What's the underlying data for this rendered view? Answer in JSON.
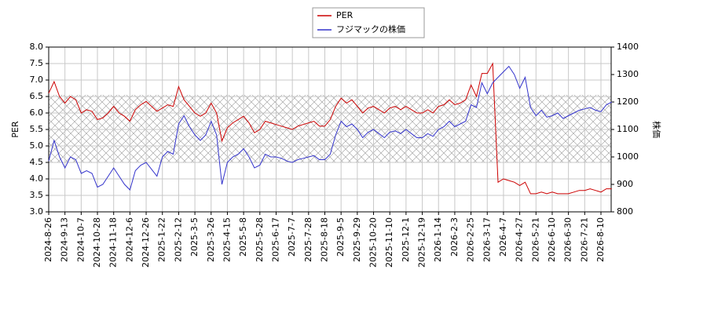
{
  "chart_data": {
    "type": "line",
    "ylabel": "PER",
    "y2label": "株価",
    "ylim": [
      3.0,
      8.0
    ],
    "yticks": [
      {
        "value": 3.0,
        "label": "3.0"
      },
      {
        "value": 3.5,
        "label": "3.5"
      },
      {
        "value": 4.0,
        "label": "4.0"
      },
      {
        "value": 4.5,
        "label": "4.5"
      },
      {
        "value": 5.0,
        "label": "5.0"
      },
      {
        "value": 5.5,
        "label": "5.5"
      },
      {
        "value": 6.0,
        "label": "6.0"
      },
      {
        "value": 6.5,
        "label": "6.5"
      },
      {
        "value": 7.0,
        "label": "7.0"
      },
      {
        "value": 7.5,
        "label": "7.5"
      },
      {
        "value": 8.0,
        "label": "8.0"
      }
    ],
    "y2lim": [
      800,
      1400
    ],
    "y2ticks": [
      800,
      900,
      1000,
      1100,
      1200,
      1300,
      1400
    ],
    "grid": true,
    "band": [
      4.5,
      6.55
    ],
    "legend": "top",
    "categories": [
      "2024-8-26",
      null,
      null,
      "2024-9-13",
      null,
      null,
      "2024-10-7",
      null,
      null,
      "2024-10-28",
      null,
      null,
      "2024-11-18",
      null,
      null,
      "2024-12-6",
      null,
      null,
      "2024-12-26",
      null,
      null,
      "2025-1-22",
      null,
      null,
      "2025-2-12",
      null,
      null,
      "2025-3-5",
      null,
      null,
      "2025-3-26",
      null,
      null,
      "2025-4-15",
      null,
      null,
      "2025-5-8",
      null,
      null,
      "2025-5-28",
      null,
      null,
      "2025-6-17",
      null,
      null,
      "2025-7-7",
      null,
      null,
      "2025-7-28",
      null,
      null,
      "2025-8-18",
      null,
      null,
      "2025-9-5",
      null,
      null,
      "2025-9-29",
      null,
      null,
      "2025-10-20",
      null,
      null,
      "2025-11-10",
      null,
      null,
      "2025-12-1",
      null,
      null,
      "2025-12-19",
      null,
      null,
      "2026-1-14",
      null,
      null,
      "2026-2-3",
      null,
      null,
      "2026-2-25",
      null,
      null,
      "2026-3-17",
      null,
      null,
      "2026-4-7",
      null,
      null,
      "2026-4-27",
      null,
      null,
      "2026-5-21",
      null,
      null,
      "2026-6-10",
      null,
      null,
      "2026-6-30",
      null,
      null,
      "2026-7-21",
      null,
      null,
      "2026-8-10",
      null,
      null
    ],
    "series": [
      {
        "name": "PER",
        "color": "#cc0000",
        "values": [
          6.6,
          6.95,
          6.5,
          6.3,
          6.5,
          6.4,
          6.0,
          6.1,
          6.05,
          5.8,
          5.85,
          6.0,
          6.2,
          6.0,
          5.9,
          5.75,
          6.1,
          6.25,
          6.35,
          6.2,
          6.05,
          6.15,
          6.25,
          6.2,
          6.8,
          6.4,
          6.2,
          6.0,
          5.9,
          6.0,
          6.3,
          6.0,
          5.15,
          5.55,
          5.7,
          5.8,
          5.9,
          5.7,
          5.4,
          5.5,
          5.75,
          5.7,
          5.65,
          5.6,
          5.55,
          5.5,
          5.6,
          5.65,
          5.7,
          5.75,
          5.6,
          5.6,
          5.8,
          6.2,
          6.45,
          6.3,
          6.4,
          6.2,
          6.0,
          6.15,
          6.2,
          6.1,
          6.0,
          6.15,
          6.2,
          6.1,
          6.2,
          6.1,
          6.0,
          6.0,
          6.1,
          6.0,
          6.2,
          6.25,
          6.4,
          6.25,
          6.3,
          6.4,
          6.85,
          6.5,
          7.2,
          7.2,
          7.5,
          3.9,
          4.0,
          3.95,
          3.9,
          3.8,
          3.9,
          3.55,
          3.55,
          3.6,
          3.55,
          3.6,
          3.55,
          3.55,
          3.55,
          3.6,
          3.65,
          3.65,
          3.7,
          3.65,
          3.6,
          3.7,
          3.7
        ]
      },
      {
        "name": "フジマックの株価",
        "color": "#3333cc",
        "axis": "y2",
        "values": [
          985,
          1060,
          1000,
          960,
          1000,
          990,
          940,
          950,
          940,
          890,
          900,
          930,
          960,
          930,
          900,
          880,
          950,
          970,
          980,
          955,
          930,
          1000,
          1020,
          1010,
          1120,
          1150,
          1110,
          1080,
          1060,
          1080,
          1130,
          1080,
          900,
          980,
          1000,
          1010,
          1030,
          1000,
          960,
          970,
          1010,
          1000,
          1000,
          995,
          985,
          980,
          990,
          995,
          1000,
          1005,
          990,
          990,
          1010,
          1080,
          1130,
          1110,
          1120,
          1100,
          1070,
          1090,
          1100,
          1085,
          1070,
          1090,
          1095,
          1085,
          1100,
          1085,
          1070,
          1070,
          1085,
          1075,
          1100,
          1110,
          1130,
          1110,
          1120,
          1130,
          1190,
          1180,
          1270,
          1230,
          1270,
          1290,
          1310,
          1330,
          1300,
          1250,
          1290,
          1180,
          1150,
          1170,
          1145,
          1150,
          1160,
          1140,
          1150,
          1160,
          1170,
          1175,
          1180,
          1170,
          1165,
          1190,
          1200
        ]
      }
    ]
  }
}
